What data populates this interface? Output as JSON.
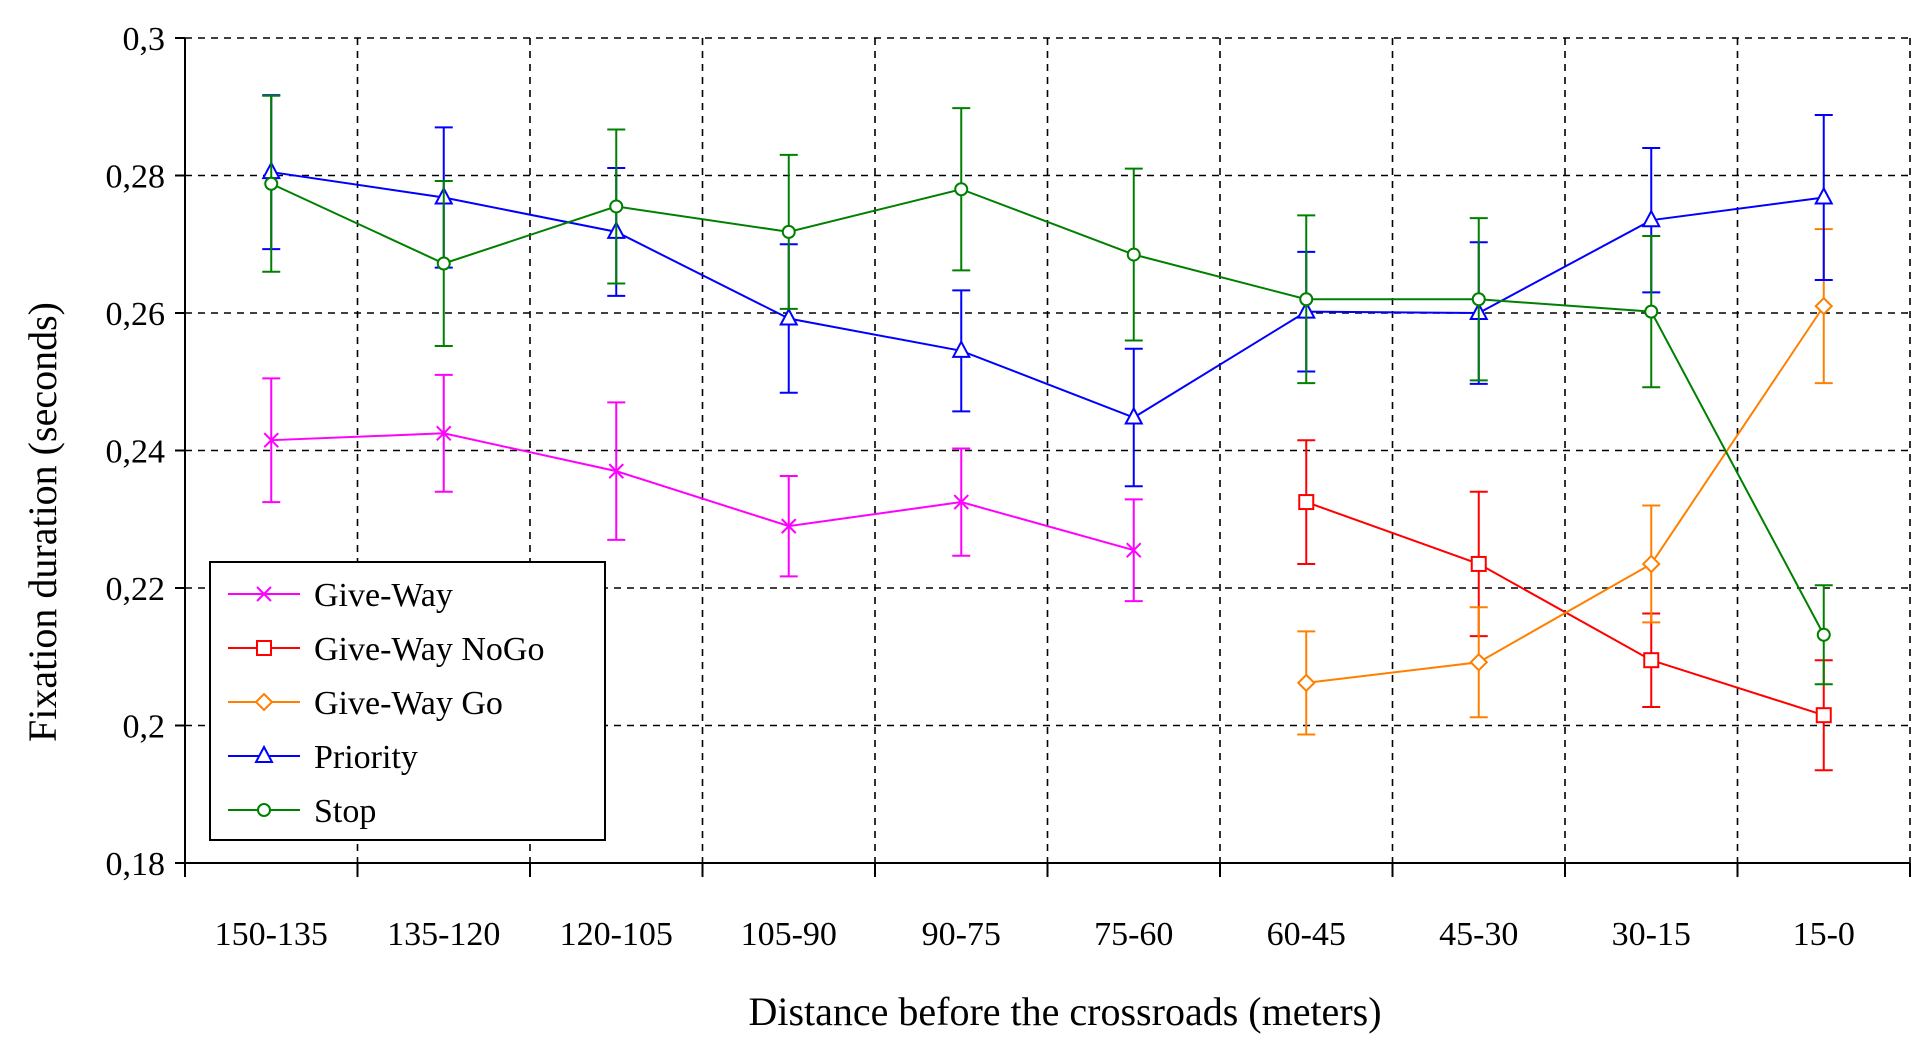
{
  "chart_data": {
    "type": "line",
    "title": "",
    "xlabel": "Distance before the crossroads (meters)",
    "ylabel": "Fixation duration (seconds)",
    "categories": [
      "150-135",
      "135-120",
      "120-105",
      "105-90",
      "90-75",
      "75-60",
      "60-45",
      "45-30",
      "30-15",
      "15-0"
    ],
    "ylim": [
      0.18,
      0.3
    ],
    "yticks": [
      0.18,
      0.2,
      0.22,
      0.24,
      0.26,
      0.28,
      0.3
    ],
    "ytick_labels": [
      "0,18",
      "0,2",
      "0,22",
      "0,24",
      "0,26",
      "0,28",
      "0,3"
    ],
    "grid": true,
    "legend_position": "bottom-left",
    "series": [
      {
        "name": "Give-Way",
        "color": "#ff00ff",
        "marker": "x",
        "values": [
          0.2415,
          0.2425,
          0.237,
          0.229,
          0.2325,
          0.2255,
          null,
          null,
          null,
          null
        ],
        "errors": [
          0.009,
          0.0085,
          0.01,
          0.0073,
          0.0078,
          0.0074,
          null,
          null,
          null,
          null
        ]
      },
      {
        "name": "Give-Way NoGo",
        "color": "#ff0000",
        "marker": "square",
        "values": [
          null,
          null,
          null,
          null,
          null,
          null,
          0.2325,
          0.2235,
          0.2095,
          0.2015
        ],
        "errors": [
          null,
          null,
          null,
          null,
          null,
          null,
          0.009,
          0.0105,
          0.0068,
          0.008
        ]
      },
      {
        "name": "Give-Way Go",
        "color": "#ff8000",
        "marker": "diamond",
        "values": [
          null,
          null,
          null,
          null,
          null,
          null,
          0.2062,
          0.2092,
          0.2235,
          0.261
        ],
        "errors": [
          null,
          null,
          null,
          null,
          null,
          null,
          0.0075,
          0.008,
          0.0085,
          0.0112
        ]
      },
      {
        "name": "Priority",
        "color": "#0000ff",
        "marker": "triangle",
        "values": [
          0.2805,
          0.2768,
          0.2718,
          0.2592,
          0.2545,
          0.2448,
          0.2602,
          0.26,
          0.2735,
          0.2768
        ],
        "errors": [
          0.0112,
          0.0102,
          0.0093,
          0.0108,
          0.0088,
          0.01,
          0.0087,
          0.0103,
          0.0105,
          0.012
        ]
      },
      {
        "name": "Stop",
        "color": "#008000",
        "marker": "circle",
        "values": [
          0.2788,
          0.2672,
          0.2755,
          0.2718,
          0.278,
          0.2685,
          0.262,
          0.262,
          0.2602,
          0.2132
        ],
        "errors": [
          0.0128,
          0.012,
          0.0112,
          0.0112,
          0.0118,
          0.0125,
          0.0122,
          0.0118,
          0.011,
          0.0072
        ]
      }
    ]
  }
}
